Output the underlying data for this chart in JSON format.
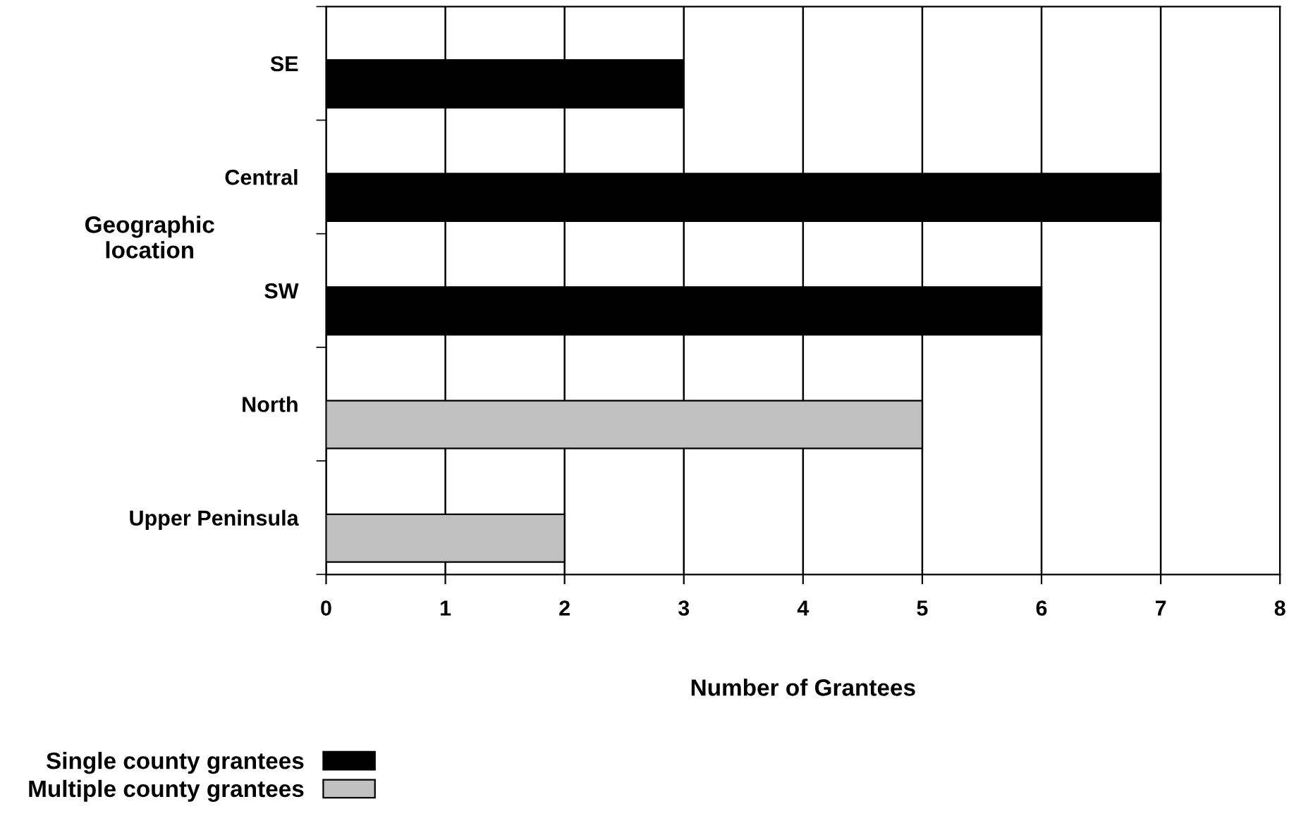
{
  "chart_data": {
    "type": "bar",
    "orientation": "horizontal",
    "xlabel": "Number of Grantees",
    "ylabel": "Geographic\nlocation",
    "categories": [
      "SE",
      "Central",
      "SW",
      "North",
      "Upper Peninsula"
    ],
    "series": [
      {
        "name": "Single county grantees",
        "color": "#000000",
        "values": [
          3,
          7,
          6,
          null,
          null
        ]
      },
      {
        "name": "Multiple county grantees",
        "color": "#c0c0c0",
        "values": [
          null,
          null,
          null,
          5,
          2
        ]
      }
    ],
    "xlim": [
      0,
      8
    ],
    "xticks": [
      0,
      1,
      2,
      3,
      4,
      5,
      6,
      7,
      8
    ],
    "grid": "x",
    "legend": "bottom left"
  }
}
